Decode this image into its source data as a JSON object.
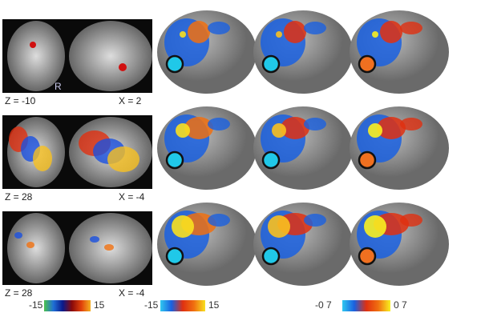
{
  "rows": [
    {
      "axial_label": "Z = -10",
      "sagittal_label": "X = 2",
      "marker": "R"
    },
    {
      "axial_label": "Z = 28",
      "sagittal_label": "X = -4"
    },
    {
      "axial_label": "Z = 28",
      "sagittal_label": "X = -4"
    }
  ],
  "colorbars": [
    {
      "min": "-15",
      "max": "15",
      "colors": [
        "#4cc24c",
        "#1f6fd6",
        "#0a1a8c",
        "#8a0a0a",
        "#e0400a",
        "#f5b020"
      ]
    },
    {
      "min": "-15",
      "max": "15",
      "colors": [
        "#30c8f0",
        "#1a60e0",
        "#e03010",
        "#f07010",
        "#f8e020"
      ]
    },
    {
      "min": "-0 7",
      "max": "0 7",
      "colors": [
        "#30c8f0",
        "#1a60e0",
        "#e03010",
        "#f07010",
        "#f8f020"
      ]
    }
  ],
  "circle_colors": [
    "#20c8e8",
    "#20c8e8",
    "#f07020"
  ]
}
